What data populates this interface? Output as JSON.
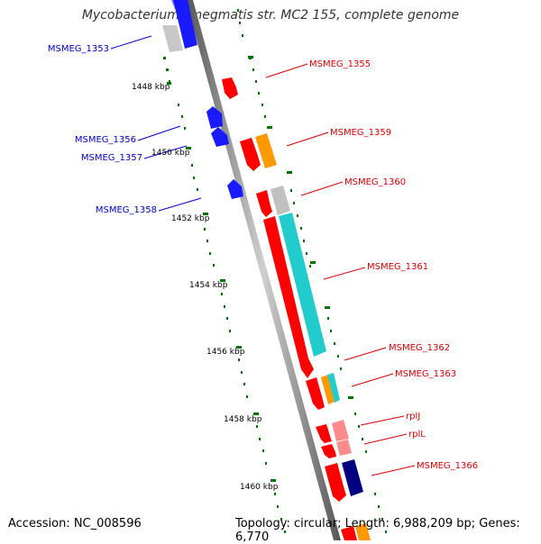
{
  "title": "Mycobacterium smegmatis str. MC2 155, complete genome",
  "footer": {
    "accession": "Accession: NC_008596",
    "summary": "Topology: circular; Length: 6,988,209 bp; Genes: 6,770"
  },
  "scale_labels": [
    "1448 kbp",
    "1450 kbp",
    "1452 kbp",
    "1454 kbp",
    "1456 kbp",
    "1458 kbp",
    "1460 kbp"
  ],
  "gene_labels_left": [
    "MSMEG_1353",
    "MSMEG_1356",
    "MSMEG_1357",
    "MSMEG_1358"
  ],
  "gene_labels_right": [
    "MSMEG_1355",
    "MSMEG_1359",
    "MSMEG_1360",
    "MSMEG_1361",
    "MSMEG_1362",
    "MSMEG_1363",
    "rplJ",
    "rplL",
    "MSMEG_1366"
  ],
  "colors": {
    "strand_minus_cds": "#1a1aff",
    "strand_plus_cds": "#ff0000",
    "gene_gray": "#c0c0c0",
    "gene_orange": "#ff9900",
    "gene_cyan": "#22cccc",
    "gene_pink": "#ff8a8a",
    "gene_navy": "#000080",
    "label_left": "#0000cc",
    "label_right": "#dd0000",
    "scale_ticks": "#007700",
    "backbone": "#888888"
  }
}
